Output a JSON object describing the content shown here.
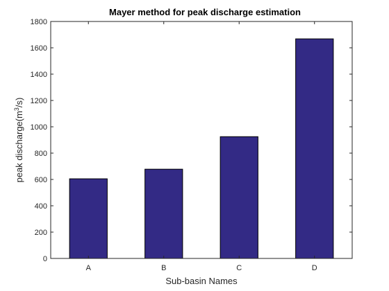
{
  "chart_data": {
    "type": "bar",
    "title": "Mayer method for peak discharge estimation",
    "xlabel": "Sub-basin Names",
    "ylabel_prefix": "peak discharge(m",
    "ylabel_sup": "3",
    "ylabel_suffix": "/s)",
    "categories": [
      "A",
      "B",
      "C",
      "D"
    ],
    "values": [
      605,
      678,
      925,
      1668
    ],
    "ylim": [
      0,
      1800
    ],
    "yticks": [
      0,
      200,
      400,
      600,
      800,
      1000,
      1200,
      1400,
      1600,
      1800
    ],
    "grid": false,
    "legend": false,
    "colors": {
      "bar": "#332a85",
      "bar_edge": "#000000",
      "axis": "#262626"
    }
  }
}
